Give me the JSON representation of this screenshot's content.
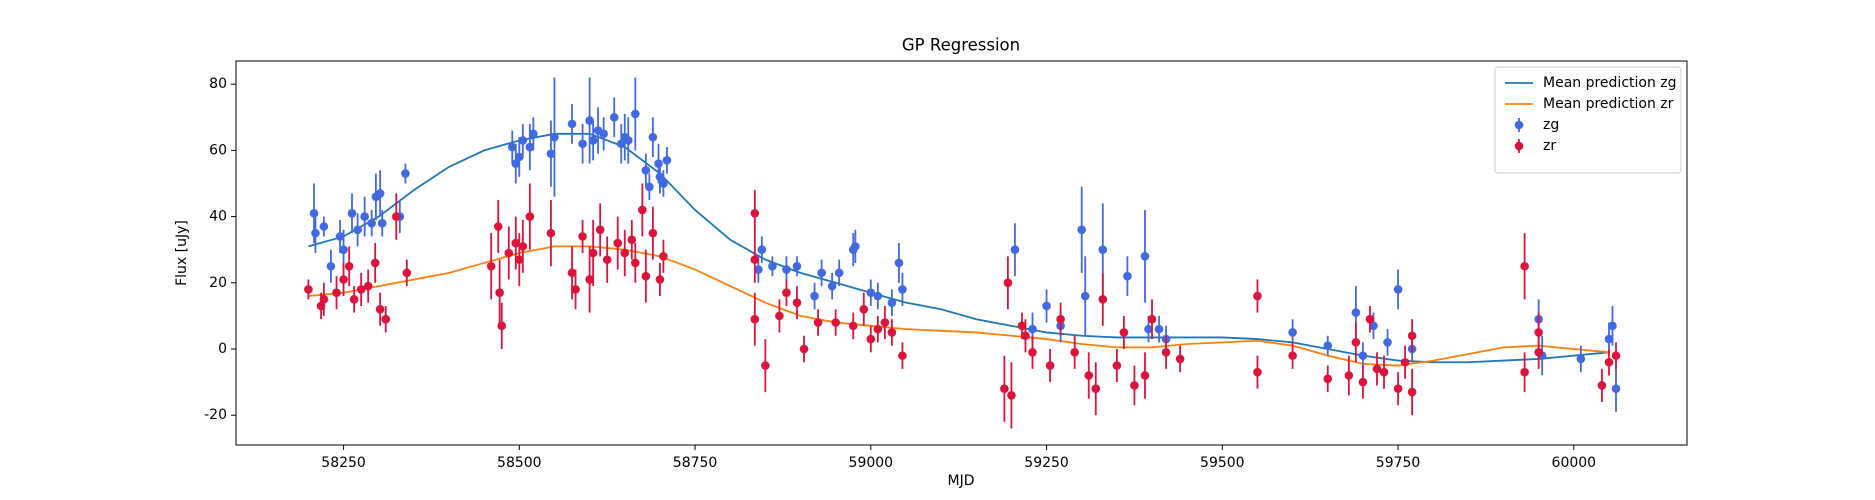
{
  "chart_data": {
    "type": "errorbar",
    "title": "GP Regression",
    "xlabel": "MJD",
    "ylabel": "Flux [uJy]",
    "xlim": [
      58097,
      60161
    ],
    "ylim": [
      -29,
      87
    ],
    "xticks": [
      58250,
      58500,
      58750,
      59000,
      59250,
      59500,
      59750,
      60000
    ],
    "yticks": [
      -20,
      0,
      20,
      40,
      60,
      80
    ],
    "grid": false,
    "legend": "upper right",
    "series": [
      {
        "name": "Mean prediction zg",
        "kind": "line",
        "color": "#1f77b4",
        "x": [
          58200,
          58250,
          58300,
          58350,
          58400,
          58450,
          58500,
          58550,
          58600,
          58650,
          58700,
          58750,
          58800,
          58850,
          58900,
          58950,
          59000,
          59050,
          59100,
          59150,
          59200,
          59250,
          59300,
          59350,
          59400,
          59450,
          59500,
          59550,
          59600,
          59650,
          59700,
          59750,
          59800,
          59850,
          59900,
          59950,
          60000,
          60050
        ],
        "values": [
          31,
          34,
          40,
          48,
          55,
          60,
          63,
          65,
          65,
          61,
          53,
          42,
          33,
          27,
          23,
          20,
          17,
          14,
          12,
          9,
          7,
          5,
          4,
          3.5,
          3.5,
          3.5,
          3.5,
          3,
          2,
          0,
          -2,
          -3.5,
          -4,
          -4,
          -3.5,
          -3,
          -2,
          -1
        ]
      },
      {
        "name": "Mean prediction zr",
        "kind": "line",
        "color": "#ff7f0e",
        "x": [
          58200,
          58250,
          58300,
          58350,
          58400,
          58450,
          58500,
          58550,
          58600,
          58650,
          58700,
          58750,
          58800,
          58850,
          58900,
          58950,
          59000,
          59050,
          59100,
          59150,
          59200,
          59250,
          59300,
          59350,
          59400,
          59450,
          59500,
          59550,
          59600,
          59650,
          59700,
          59750,
          59800,
          59850,
          59900,
          59950,
          60000,
          60050
        ],
        "values": [
          16,
          17,
          19,
          21,
          23,
          26,
          29,
          31,
          31,
          30,
          28,
          24,
          19,
          14,
          10,
          8,
          7,
          6,
          5.5,
          5,
          4,
          3,
          1.5,
          0.5,
          0.5,
          1.5,
          2,
          2.5,
          1,
          -2,
          -4.5,
          -5,
          -3.5,
          -1.5,
          0.5,
          1,
          0,
          -1
        ]
      },
      {
        "name": "zg",
        "kind": "errorbar",
        "color": "#4169e1",
        "x": [
          58208,
          58210,
          58222,
          58232,
          58245,
          58250,
          58262,
          58270,
          58280,
          58290,
          58296,
          58302,
          58305,
          58330,
          58338,
          58490,
          58495,
          58500,
          58505,
          58515,
          58520,
          58545,
          58550,
          58575,
          58590,
          58600,
          58605,
          58612,
          58620,
          58635,
          58645,
          58650,
          58655,
          58665,
          58680,
          58685,
          58690,
          58698,
          58700,
          58705,
          58710,
          58840,
          58845,
          58860,
          58880,
          58895,
          58920,
          58930,
          58945,
          58955,
          58975,
          58978,
          59000,
          59010,
          59030,
          59040,
          59045,
          59205,
          59230,
          59250,
          59270,
          59300,
          59305,
          59330,
          59365,
          59390,
          59395,
          59410,
          59420,
          59600,
          59650,
          59690,
          59700,
          59715,
          59735,
          59750,
          59770,
          59950,
          59955,
          60010,
          60050,
          60055,
          60060
        ],
        "values": [
          41,
          35,
          37,
          25,
          34,
          30,
          41,
          36,
          40,
          38,
          46,
          47,
          38,
          40,
          53,
          61,
          56,
          58,
          63,
          61,
          65,
          59,
          64,
          68,
          62,
          69,
          63,
          66,
          65,
          70,
          62,
          64,
          63,
          71,
          54,
          49,
          64,
          56,
          52,
          50,
          57,
          24,
          30,
          25,
          24,
          25,
          16,
          23,
          19,
          23,
          30,
          31,
          17,
          16,
          14,
          26,
          18,
          30,
          6,
          13,
          7,
          36,
          16,
          30,
          22,
          28,
          6,
          6,
          3,
          5,
          1,
          11,
          -2,
          7,
          2,
          18,
          0,
          9,
          -2,
          -3,
          3,
          7,
          -12
        ],
        "errors": [
          9,
          6,
          3,
          5,
          5,
          6,
          6,
          5,
          6,
          4,
          7,
          7,
          4,
          5,
          3,
          5,
          6,
          6,
          5,
          7,
          5,
          10,
          18,
          6,
          6,
          13,
          6,
          7,
          5,
          6,
          6,
          7,
          7,
          11,
          5,
          4,
          6,
          6,
          5,
          4,
          4,
          4,
          4,
          3,
          4,
          3,
          4,
          4,
          4,
          4,
          5,
          5,
          4,
          4,
          4,
          6,
          5,
          8,
          5,
          5,
          5,
          13,
          12,
          14,
          6,
          14,
          4,
          4,
          4,
          4,
          3,
          8,
          4,
          4,
          4,
          6,
          4,
          6,
          6,
          4,
          5,
          6,
          7
        ]
      },
      {
        "name": "zr",
        "kind": "errorbar",
        "color": "#dc143c",
        "x": [
          58200,
          58218,
          58222,
          58240,
          58250,
          58258,
          58265,
          58275,
          58285,
          58295,
          58302,
          58310,
          58325,
          58340,
          58460,
          58470,
          58472,
          58475,
          58485,
          58495,
          58500,
          58505,
          58515,
          58545,
          58575,
          58580,
          58590,
          58600,
          58605,
          58615,
          58625,
          58640,
          58650,
          58660,
          58665,
          58675,
          58680,
          58690,
          58700,
          58705,
          58835,
          58835,
          58835,
          58850,
          58870,
          58880,
          58895,
          58905,
          58925,
          58950,
          58975,
          58990,
          59000,
          59010,
          59020,
          59030,
          59045,
          59190,
          59195,
          59200,
          59215,
          59220,
          59230,
          59255,
          59270,
          59290,
          59310,
          59320,
          59330,
          59350,
          59360,
          59375,
          59390,
          59400,
          59420,
          59440,
          59550,
          59550,
          59600,
          59650,
          59680,
          59690,
          59700,
          59710,
          59720,
          59730,
          59750,
          59760,
          59770,
          59770,
          59930,
          59930,
          59950,
          59950,
          60040,
          60050,
          60060
        ],
        "values": [
          18,
          13,
          15,
          17,
          21,
          25,
          15,
          18,
          19,
          26,
          12,
          9,
          40,
          23,
          25,
          37,
          17,
          7,
          29,
          32,
          27,
          31,
          40,
          35,
          23,
          18,
          34,
          21,
          29,
          36,
          27,
          32,
          29,
          33,
          26,
          42,
          22,
          35,
          21,
          28,
          41,
          27,
          9,
          -5,
          10,
          17,
          14,
          0,
          8,
          8,
          7,
          12,
          3,
          6,
          8,
          5,
          -2,
          -12,
          20,
          -14,
          7,
          4,
          -1,
          -5,
          9,
          -1,
          -8,
          -12,
          15,
          -5,
          5,
          -11,
          -8,
          9,
          -1,
          -3,
          16,
          -7,
          -2,
          -9,
          -8,
          2,
          -10,
          9,
          -6,
          -7,
          -12,
          -4,
          -13,
          4,
          25,
          -7,
          5,
          -1,
          -11,
          -4,
          -2
        ],
        "errors": [
          3,
          4,
          5,
          5,
          5,
          6,
          4,
          5,
          5,
          6,
          5,
          4,
          7,
          4,
          10,
          8,
          10,
          7,
          8,
          8,
          8,
          8,
          10,
          10,
          8,
          6,
          5,
          10,
          10,
          8,
          7,
          8,
          7,
          6,
          6,
          8,
          8,
          8,
          5,
          5,
          7,
          7,
          8,
          8,
          5,
          4,
          5,
          4,
          4,
          4,
          4,
          5,
          4,
          4,
          5,
          4,
          4,
          10,
          8,
          10,
          4,
          5,
          5,
          5,
          5,
          5,
          7,
          8,
          8,
          5,
          5,
          6,
          7,
          6,
          5,
          4,
          5,
          5,
          4,
          4,
          6,
          6,
          5,
          4,
          5,
          5,
          5,
          5,
          7,
          5,
          10,
          6,
          6,
          5,
          5,
          4,
          4
        ]
      }
    ]
  }
}
